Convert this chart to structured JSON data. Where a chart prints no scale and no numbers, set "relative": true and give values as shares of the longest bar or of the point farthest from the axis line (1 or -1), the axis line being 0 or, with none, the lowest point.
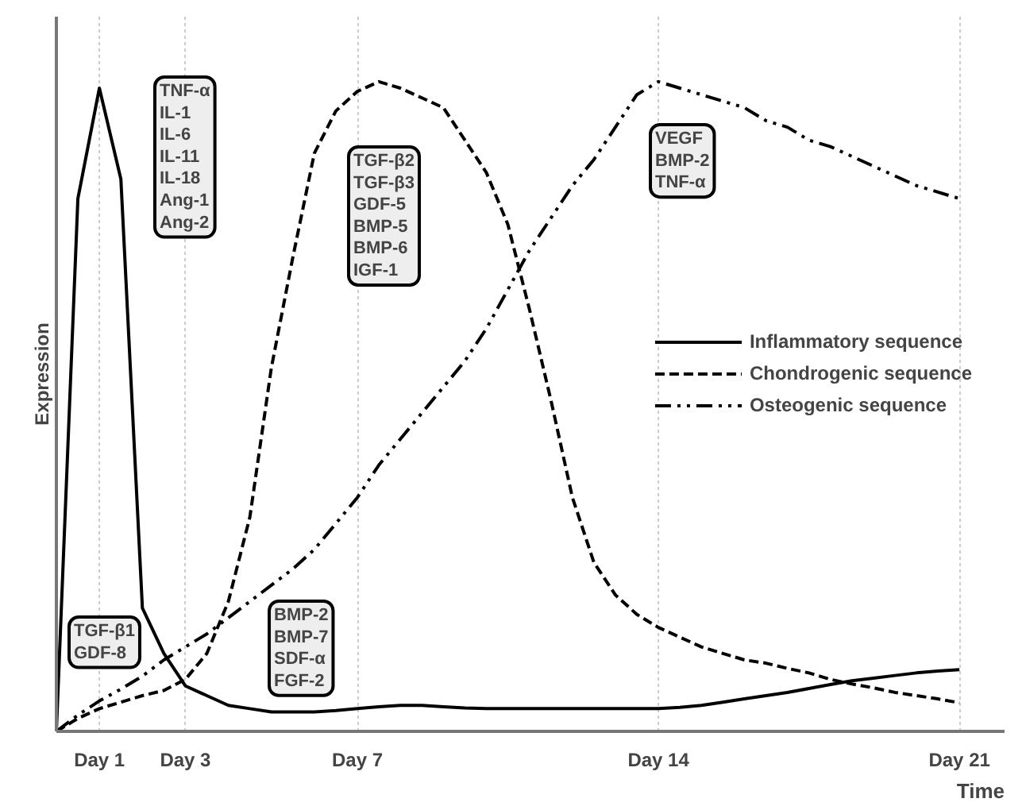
{
  "chart_data": {
    "type": "line",
    "relative": true,
    "xlabel": "Time",
    "ylabel": "Expression",
    "categories": [
      null,
      null,
      "Day 1",
      null,
      null,
      null,
      "Day 3",
      null,
      null,
      null,
      null,
      null,
      null,
      null,
      "Day 7",
      null,
      null,
      null,
      null,
      null,
      null,
      null,
      null,
      null,
      null,
      null,
      null,
      null,
      "Day 14",
      null,
      null,
      null,
      null,
      null,
      null,
      null,
      null,
      null,
      null,
      null,
      null,
      null,
      "Day 21"
    ],
    "grid": "x",
    "legend": "right",
    "marker": "none",
    "series": [
      {
        "name": "Inflammatory sequence",
        "color": "#000000",
        "line_style": "solid",
        "values": [
          0,
          0.82,
          0.99,
          0.85,
          0.19,
          0.12,
          0.07,
          0.055,
          0.04,
          0.035,
          0.03,
          0.03,
          0.03,
          0.032,
          0.035,
          0.038,
          0.04,
          0.04,
          0.038,
          0.036,
          0.035,
          0.035,
          0.035,
          0.035,
          0.035,
          0.035,
          0.035,
          0.035,
          0.035,
          0.037,
          0.04,
          0.045,
          0.05,
          0.055,
          0.06,
          0.066,
          0.072,
          0.078,
          0.082,
          0.086,
          0.09,
          0.093,
          0.095
        ]
      },
      {
        "name": "Chondrogenic sequence",
        "color": "#000000",
        "line_style": "dashed",
        "values": [
          0,
          0.02,
          0.035,
          0.045,
          0.055,
          0.063,
          0.08,
          0.12,
          0.2,
          0.33,
          0.56,
          0.73,
          0.89,
          0.955,
          0.985,
          1.0,
          0.99,
          0.975,
          0.96,
          0.91,
          0.86,
          0.78,
          0.65,
          0.51,
          0.36,
          0.26,
          0.21,
          0.18,
          0.16,
          0.145,
          0.13,
          0.12,
          0.11,
          0.105,
          0.097,
          0.09,
          0.08,
          0.073,
          0.067,
          0.06,
          0.055,
          0.05,
          0.044
        ]
      },
      {
        "name": "Osteogenic sequence",
        "color": "#000000",
        "line_style": "dashdot",
        "values": [
          0,
          0.025,
          0.047,
          0.065,
          0.085,
          0.11,
          0.13,
          0.15,
          0.175,
          0.2,
          0.225,
          0.25,
          0.28,
          0.32,
          0.36,
          0.41,
          0.45,
          0.49,
          0.53,
          0.57,
          0.62,
          0.68,
          0.74,
          0.79,
          0.84,
          0.88,
          0.93,
          0.98,
          1.0,
          0.99,
          0.98,
          0.97,
          0.96,
          0.94,
          0.93,
          0.91,
          0.9,
          0.885,
          0.87,
          0.855,
          0.84,
          0.83,
          0.82
        ]
      }
    ],
    "annotations": [
      "TNF-α\nIL-1\nIL-6\nIL-11\nIL-18\nAng-1\nAng-2",
      "TGF-β2\nTGF-β3\nGDF-5\nBMP-5\nBMP-6\nIGF-1",
      "VEGF\nBMP-2\nTNF-α",
      "TGF-β1\nGDF-8",
      "BMP-2\nBMP-7\nSDF-α\nFGF-2"
    ]
  }
}
